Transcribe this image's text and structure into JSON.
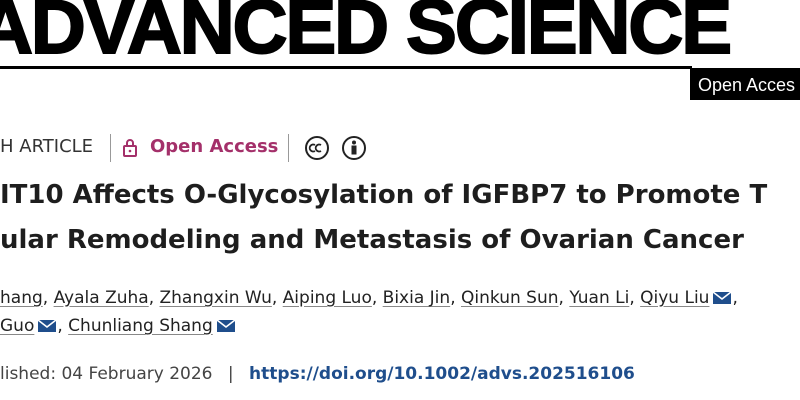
{
  "header": {
    "logo": "ADVANCED SCIENCE",
    "badge": "Open Acces"
  },
  "article": {
    "type": "H ARTICLE",
    "access": "Open Access",
    "title_lines": [
      "IT10 Affects O-Glycosylation of IGFBP7 to Promote T",
      "ular Remodeling and Metastasis of Ovarian Cancer"
    ],
    "author_separator": ",",
    "author_lines": [
      [
        {
          "name": "hang",
          "corresponding": false
        },
        {
          "name": "Ayala Zuha",
          "corresponding": false
        },
        {
          "name": "Zhangxin Wu",
          "corresponding": false
        },
        {
          "name": "Aiping Luo",
          "corresponding": false
        },
        {
          "name": "Bixia Jin",
          "corresponding": false
        },
        {
          "name": "Qinkun Sun",
          "corresponding": false
        },
        {
          "name": "Yuan Li",
          "corresponding": false
        },
        {
          "name": "Qiyu Liu",
          "corresponding": true
        }
      ],
      [
        {
          "name": "Guo",
          "corresponding": true
        },
        {
          "name": "Chunliang Shang",
          "corresponding": true
        }
      ]
    ],
    "published": "lished: 04 February 2026",
    "date_separator": "|",
    "doi": "https://doi.org/10.1002/advs.202516106"
  }
}
